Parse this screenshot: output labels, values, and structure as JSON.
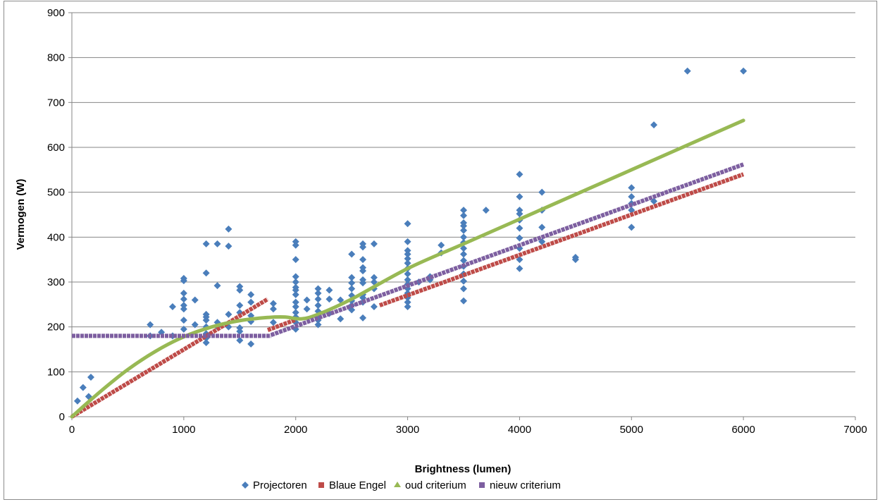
{
  "chart_data": {
    "type": "scatter",
    "xlabel": "Brightness (lumen)",
    "ylabel": "Vermogen (W)",
    "xlim": [
      0,
      7000
    ],
    "ylim": [
      0,
      900
    ],
    "xticks": [
      0,
      1000,
      2000,
      3000,
      4000,
      5000,
      6000,
      7000
    ],
    "yticks": [
      0,
      100,
      200,
      300,
      400,
      500,
      600,
      700,
      800,
      900
    ],
    "grid": "horizontal",
    "legend_position": "bottom",
    "series": [
      {
        "name": "Projectoren",
        "kind": "scatter",
        "color": "#4a7ebb",
        "marker": "diamond",
        "points": [
          [
            50,
            35
          ],
          [
            100,
            65
          ],
          [
            150,
            45
          ],
          [
            170,
            88
          ],
          [
            700,
            180
          ],
          [
            700,
            205
          ],
          [
            800,
            188
          ],
          [
            900,
            245
          ],
          [
            900,
            180
          ],
          [
            1000,
            195
          ],
          [
            1000,
            215
          ],
          [
            1000,
            240
          ],
          [
            1000,
            248
          ],
          [
            1000,
            262
          ],
          [
            1000,
            275
          ],
          [
            1000,
            303
          ],
          [
            1000,
            308
          ],
          [
            1100,
            205
          ],
          [
            1100,
            260
          ],
          [
            1200,
            165
          ],
          [
            1200,
            175
          ],
          [
            1200,
            185
          ],
          [
            1200,
            200
          ],
          [
            1200,
            215
          ],
          [
            1200,
            222
          ],
          [
            1200,
            228
          ],
          [
            1200,
            320
          ],
          [
            1200,
            385
          ],
          [
            1300,
            200
          ],
          [
            1300,
            210
          ],
          [
            1300,
            292
          ],
          [
            1300,
            385
          ],
          [
            1400,
            200
          ],
          [
            1400,
            228
          ],
          [
            1400,
            380
          ],
          [
            1400,
            418
          ],
          [
            1500,
            170
          ],
          [
            1500,
            190
          ],
          [
            1500,
            198
          ],
          [
            1500,
            232
          ],
          [
            1500,
            248
          ],
          [
            1500,
            282
          ],
          [
            1500,
            290
          ],
          [
            1600,
            162
          ],
          [
            1600,
            212
          ],
          [
            1600,
            225
          ],
          [
            1600,
            255
          ],
          [
            1600,
            272
          ],
          [
            1800,
            210
          ],
          [
            1800,
            240
          ],
          [
            1800,
            252
          ],
          [
            2000,
            195
          ],
          [
            2000,
            210
          ],
          [
            2000,
            222
          ],
          [
            2000,
            232
          ],
          [
            2000,
            245
          ],
          [
            2000,
            255
          ],
          [
            2000,
            272
          ],
          [
            2000,
            282
          ],
          [
            2000,
            288
          ],
          [
            2000,
            300
          ],
          [
            2000,
            312
          ],
          [
            2000,
            350
          ],
          [
            2000,
            382
          ],
          [
            2000,
            390
          ],
          [
            2100,
            240
          ],
          [
            2100,
            260
          ],
          [
            2200,
            205
          ],
          [
            2200,
            215
          ],
          [
            2200,
            225
          ],
          [
            2200,
            235
          ],
          [
            2200,
            248
          ],
          [
            2200,
            262
          ],
          [
            2200,
            275
          ],
          [
            2200,
            285
          ],
          [
            2300,
            230
          ],
          [
            2300,
            262
          ],
          [
            2300,
            282
          ],
          [
            2400,
            218
          ],
          [
            2400,
            260
          ],
          [
            2500,
            238
          ],
          [
            2500,
            248
          ],
          [
            2500,
            258
          ],
          [
            2500,
            270
          ],
          [
            2500,
            285
          ],
          [
            2500,
            298
          ],
          [
            2500,
            310
          ],
          [
            2500,
            362
          ],
          [
            2600,
            220
          ],
          [
            2600,
            255
          ],
          [
            2600,
            265
          ],
          [
            2600,
            272
          ],
          [
            2600,
            298
          ],
          [
            2600,
            305
          ],
          [
            2600,
            325
          ],
          [
            2600,
            332
          ],
          [
            2600,
            350
          ],
          [
            2600,
            378
          ],
          [
            2600,
            385
          ],
          [
            2700,
            245
          ],
          [
            2700,
            285
          ],
          [
            2700,
            300
          ],
          [
            2700,
            310
          ],
          [
            2700,
            385
          ],
          [
            3000,
            245
          ],
          [
            3000,
            255
          ],
          [
            3000,
            265
          ],
          [
            3000,
            275
          ],
          [
            3000,
            285
          ],
          [
            3000,
            295
          ],
          [
            3000,
            305
          ],
          [
            3000,
            318
          ],
          [
            3000,
            330
          ],
          [
            3000,
            342
          ],
          [
            3000,
            352
          ],
          [
            3000,
            362
          ],
          [
            3000,
            370
          ],
          [
            3000,
            390
          ],
          [
            3000,
            430
          ],
          [
            3100,
            300
          ],
          [
            3200,
            305
          ],
          [
            3200,
            312
          ],
          [
            3300,
            365
          ],
          [
            3300,
            382
          ],
          [
            3500,
            258
          ],
          [
            3500,
            285
          ],
          [
            3500,
            302
          ],
          [
            3500,
            318
          ],
          [
            3500,
            335
          ],
          [
            3500,
            348
          ],
          [
            3500,
            362
          ],
          [
            3500,
            375
          ],
          [
            3500,
            388
          ],
          [
            3500,
            400
          ],
          [
            3500,
            415
          ],
          [
            3500,
            425
          ],
          [
            3500,
            432
          ],
          [
            3500,
            448
          ],
          [
            3500,
            460
          ],
          [
            3700,
            460
          ],
          [
            4000,
            330
          ],
          [
            4000,
            350
          ],
          [
            4000,
            375
          ],
          [
            4000,
            398
          ],
          [
            4000,
            420
          ],
          [
            4000,
            438
          ],
          [
            4000,
            452
          ],
          [
            4000,
            460
          ],
          [
            4000,
            490
          ],
          [
            4000,
            540
          ],
          [
            4200,
            390
          ],
          [
            4200,
            422
          ],
          [
            4200,
            460
          ],
          [
            4200,
            500
          ],
          [
            4500,
            350
          ],
          [
            4500,
            355
          ],
          [
            5000,
            422
          ],
          [
            5000,
            460
          ],
          [
            5000,
            475
          ],
          [
            5000,
            490
          ],
          [
            5000,
            510
          ],
          [
            5200,
            480
          ],
          [
            5200,
            650
          ],
          [
            5500,
            770
          ],
          [
            6000,
            770
          ]
        ]
      },
      {
        "name": "Blaue Engel",
        "kind": "dashed-line",
        "color": "#be4b48",
        "segments": [
          [
            [
              0,
              0
            ],
            [
              1750,
              262
            ]
          ],
          [
            [
              1750,
              193
            ],
            [
              2000,
              216
            ]
          ],
          [
            [
              2750,
              248
            ],
            [
              6000,
              540
            ]
          ]
        ]
      },
      {
        "name": "oud criterium",
        "kind": "line",
        "color": "#98b954",
        "points": [
          [
            0,
            0
          ],
          [
            250,
            55
          ],
          [
            500,
            105
          ],
          [
            750,
            146
          ],
          [
            1000,
            178
          ],
          [
            1250,
            200
          ],
          [
            1500,
            214
          ],
          [
            1750,
            221
          ],
          [
            1900,
            222
          ],
          [
            2050,
            218
          ],
          [
            2200,
            228
          ],
          [
            2500,
            262
          ],
          [
            3000,
            330
          ],
          [
            3500,
            385
          ],
          [
            4000,
            440
          ],
          [
            5000,
            550
          ],
          [
            6000,
            660
          ]
        ]
      },
      {
        "name": "nieuw criterium",
        "kind": "dashed-line",
        "color": "#7d5fa0",
        "segments": [
          [
            [
              0,
              180
            ],
            [
              1780,
              180
            ]
          ],
          [
            [
              1780,
              182
            ],
            [
              6000,
              562
            ]
          ]
        ]
      }
    ]
  }
}
